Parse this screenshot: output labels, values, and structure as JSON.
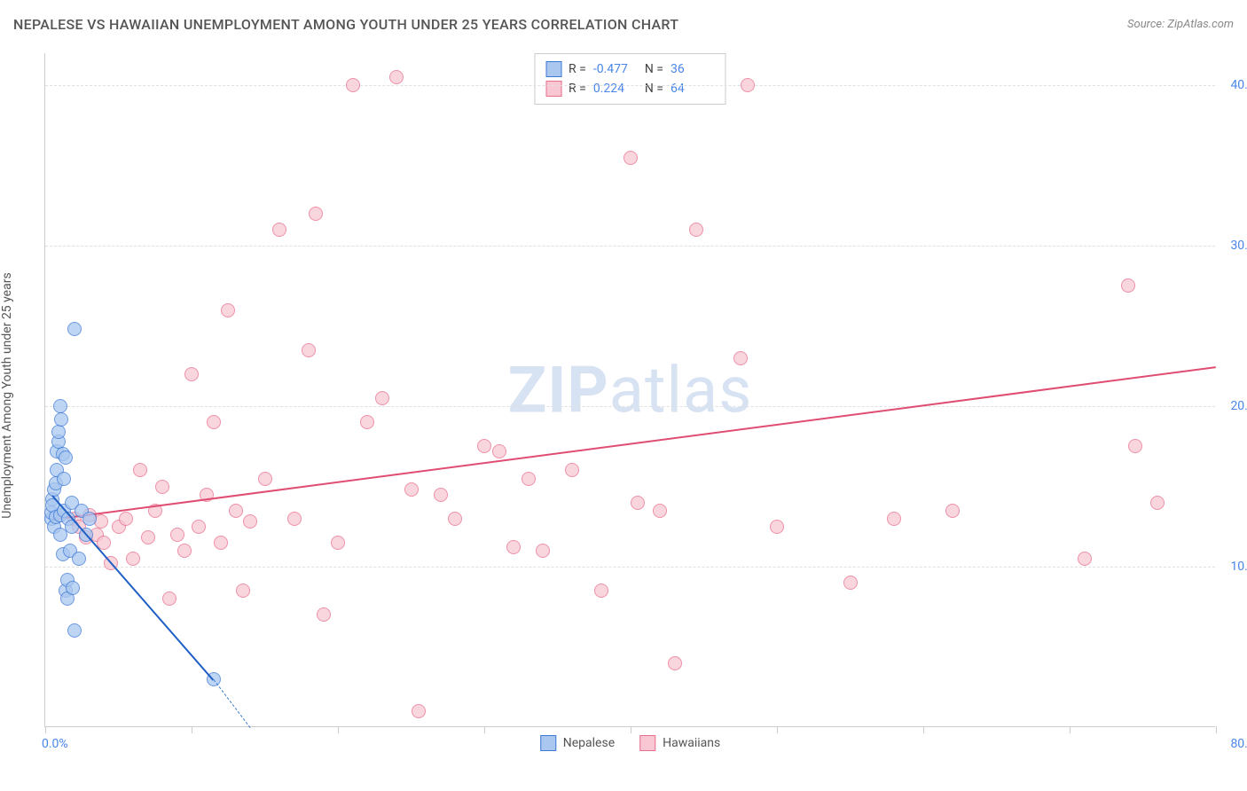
{
  "title": "NEPALESE VS HAWAIIAN UNEMPLOYMENT AMONG YOUTH UNDER 25 YEARS CORRELATION CHART",
  "source": "Source: ZipAtlas.com",
  "ylabel": "Unemployment Among Youth under 25 years",
  "watermark_bold": "ZIP",
  "watermark_rest": "atlas",
  "chart": {
    "type": "scatter",
    "background_color": "#ffffff",
    "grid_color": "#e0e0e0",
    "axis_color": "#cccccc",
    "tick_label_color": "#4a86e8",
    "xlim": [
      0,
      80
    ],
    "ylim": [
      0,
      42
    ],
    "x_ticks": [
      0,
      10,
      20,
      30,
      40,
      50,
      60,
      70,
      80
    ],
    "x_tick_labels": {
      "0": "0.0%",
      "80": "80.0%"
    },
    "y_ticks": [
      10,
      20,
      30,
      40
    ],
    "y_tick_labels": {
      "10": "10.0%",
      "20": "20.0%",
      "30": "30.0%",
      "40": "40.0%"
    },
    "marker_radius": 8,
    "marker_stroke_width": 1.2,
    "trend_line_width": 2
  },
  "series": [
    {
      "name": "Nepalese",
      "fill_color": "#a9c7ef",
      "stroke_color": "#3d78d6",
      "line_color": "#1f5fc4",
      "R_label": "R =",
      "R": "-0.477",
      "N_label": "N =",
      "N": "36",
      "trend": {
        "x1": 0.5,
        "y1": 14.5,
        "x2": 11.5,
        "y2": 3.0,
        "dash_to_x": 14.0,
        "dash_to_y": 0
      },
      "points": [
        [
          0.4,
          13.0
        ],
        [
          0.4,
          13.4
        ],
        [
          0.5,
          14.2
        ],
        [
          0.5,
          13.8
        ],
        [
          0.6,
          12.5
        ],
        [
          0.6,
          14.8
        ],
        [
          0.7,
          13.1
        ],
        [
          0.7,
          15.2
        ],
        [
          0.8,
          16.0
        ],
        [
          0.8,
          17.2
        ],
        [
          0.9,
          17.8
        ],
        [
          0.9,
          18.4
        ],
        [
          1.0,
          13.2
        ],
        [
          1.0,
          12.0
        ],
        [
          1.0,
          20.0
        ],
        [
          1.1,
          19.2
        ],
        [
          1.2,
          17.0
        ],
        [
          1.2,
          10.8
        ],
        [
          1.3,
          13.5
        ],
        [
          1.3,
          15.5
        ],
        [
          1.4,
          16.8
        ],
        [
          1.4,
          8.5
        ],
        [
          1.5,
          8.0
        ],
        [
          1.5,
          9.2
        ],
        [
          1.6,
          13.0
        ],
        [
          1.7,
          11.0
        ],
        [
          1.8,
          14.0
        ],
        [
          1.8,
          12.5
        ],
        [
          1.9,
          8.7
        ],
        [
          2.0,
          6.0
        ],
        [
          2.0,
          24.8
        ],
        [
          2.3,
          10.5
        ],
        [
          2.5,
          13.5
        ],
        [
          2.8,
          12.0
        ],
        [
          3.0,
          13.0
        ],
        [
          11.5,
          3.0
        ]
      ]
    },
    {
      "name": "Hawaiians",
      "fill_color": "#f8c7d3",
      "stroke_color": "#e86d8a",
      "line_color": "#e04d73",
      "R_label": "R =",
      "R": "0.224",
      "N_label": "N =",
      "N": "64",
      "trend": {
        "x1": 0.5,
        "y1": 13.0,
        "x2": 80,
        "y2": 22.5
      },
      "points": [
        [
          2.0,
          13.0
        ],
        [
          2.3,
          12.5
        ],
        [
          2.8,
          11.8
        ],
        [
          3.0,
          13.2
        ],
        [
          3.5,
          12.0
        ],
        [
          3.8,
          12.8
        ],
        [
          4.0,
          11.5
        ],
        [
          4.5,
          10.2
        ],
        [
          5.0,
          12.5
        ],
        [
          5.5,
          13.0
        ],
        [
          6.0,
          10.5
        ],
        [
          6.5,
          16.0
        ],
        [
          7.0,
          11.8
        ],
        [
          7.5,
          13.5
        ],
        [
          8.0,
          15.0
        ],
        [
          8.5,
          8.0
        ],
        [
          9.0,
          12.0
        ],
        [
          9.5,
          11.0
        ],
        [
          10.0,
          22.0
        ],
        [
          10.5,
          12.5
        ],
        [
          11.0,
          14.5
        ],
        [
          11.5,
          19.0
        ],
        [
          12.0,
          11.5
        ],
        [
          12.5,
          26.0
        ],
        [
          13.0,
          13.5
        ],
        [
          13.5,
          8.5
        ],
        [
          14.0,
          12.8
        ],
        [
          15.0,
          15.5
        ],
        [
          16.0,
          31.0
        ],
        [
          17.0,
          13.0
        ],
        [
          18.0,
          23.5
        ],
        [
          18.5,
          32.0
        ],
        [
          19.0,
          7.0
        ],
        [
          20.0,
          11.5
        ],
        [
          21.0,
          40.0
        ],
        [
          22.0,
          19.0
        ],
        [
          23.0,
          20.5
        ],
        [
          24.0,
          40.5
        ],
        [
          25.0,
          14.8
        ],
        [
          25.5,
          1.0
        ],
        [
          27.0,
          14.5
        ],
        [
          28.0,
          13.0
        ],
        [
          30.0,
          17.5
        ],
        [
          31.0,
          17.2
        ],
        [
          32.0,
          11.2
        ],
        [
          33.0,
          15.5
        ],
        [
          34.0,
          11.0
        ],
        [
          36.0,
          16.0
        ],
        [
          38.0,
          8.5
        ],
        [
          40.0,
          35.5
        ],
        [
          40.5,
          14.0
        ],
        [
          42.0,
          13.5
        ],
        [
          43.0,
          4.0
        ],
        [
          44.5,
          31.0
        ],
        [
          47.5,
          23.0
        ],
        [
          48.0,
          40.0
        ],
        [
          50.0,
          12.5
        ],
        [
          55.0,
          9.0
        ],
        [
          58.0,
          13.0
        ],
        [
          62.0,
          13.5
        ],
        [
          71.0,
          10.5
        ],
        [
          74.0,
          27.5
        ],
        [
          74.5,
          17.5
        ],
        [
          76.0,
          14.0
        ]
      ]
    }
  ],
  "bottom_legend": [
    {
      "label": "Nepalese",
      "fill": "#a9c7ef",
      "stroke": "#3d78d6"
    },
    {
      "label": "Hawaiians",
      "fill": "#f8c7d3",
      "stroke": "#e86d8a"
    }
  ]
}
